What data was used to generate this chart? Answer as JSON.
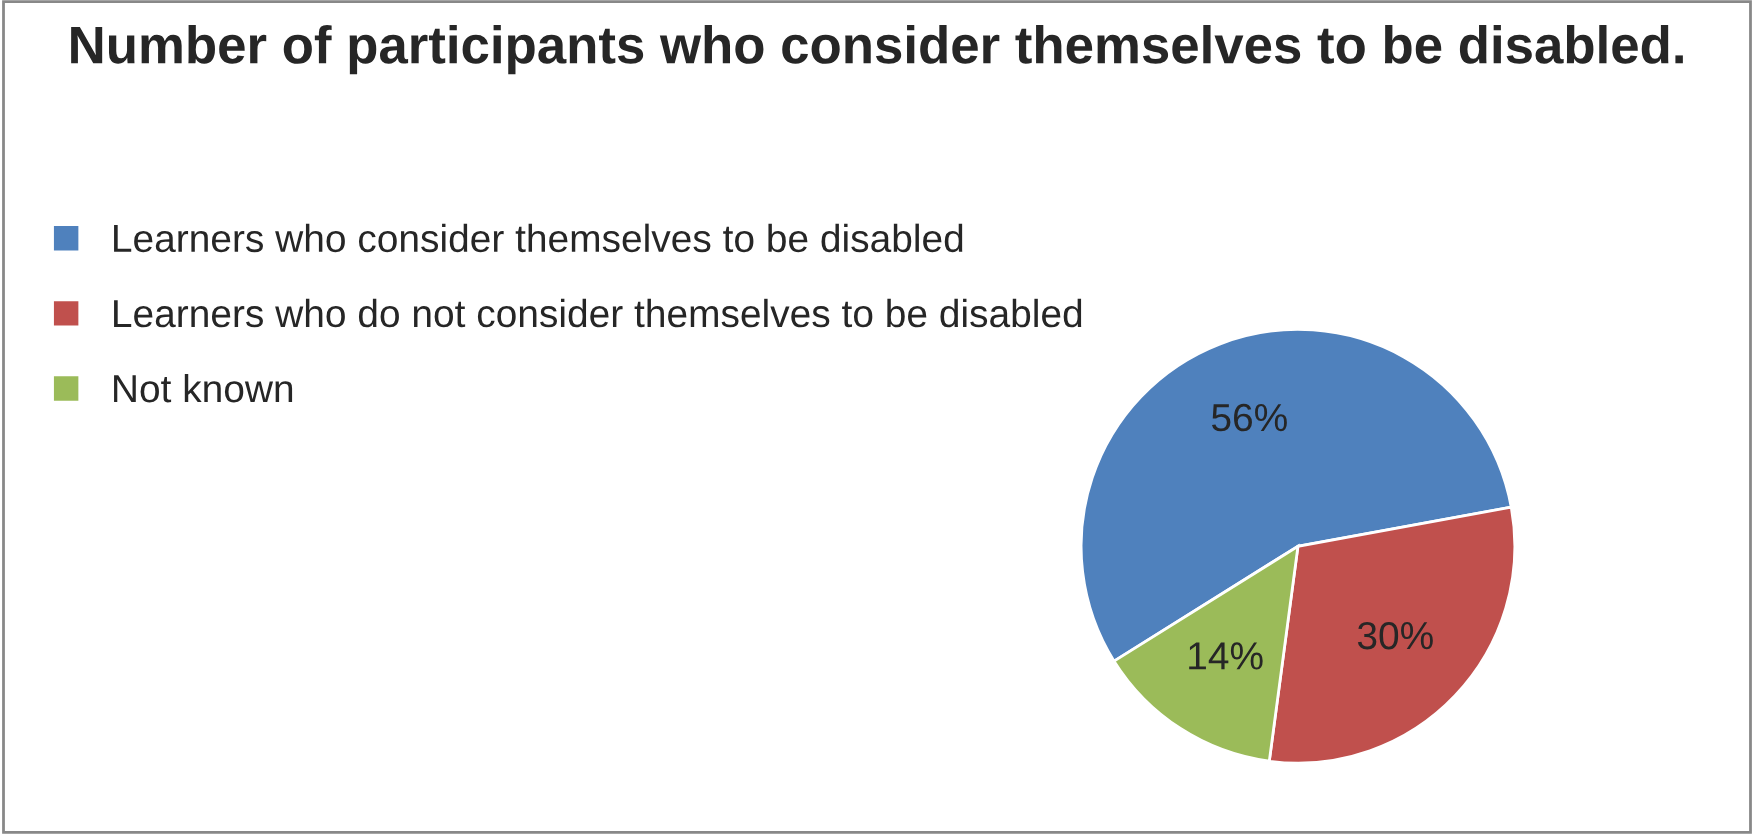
{
  "chart_data": {
    "type": "pie",
    "title": "Number of participants who consider themselves to be disabled.",
    "categories": [
      "Learners who consider themselves to be disabled",
      "Learners who do not consider themselves to be disabled",
      "Not known"
    ],
    "values": [
      56,
      30,
      14
    ],
    "colors": [
      "#4f81bd",
      "#c0504d",
      "#9bbb59"
    ],
    "value_labels": [
      "56%",
      "30%",
      "14%"
    ],
    "legend": "left"
  }
}
